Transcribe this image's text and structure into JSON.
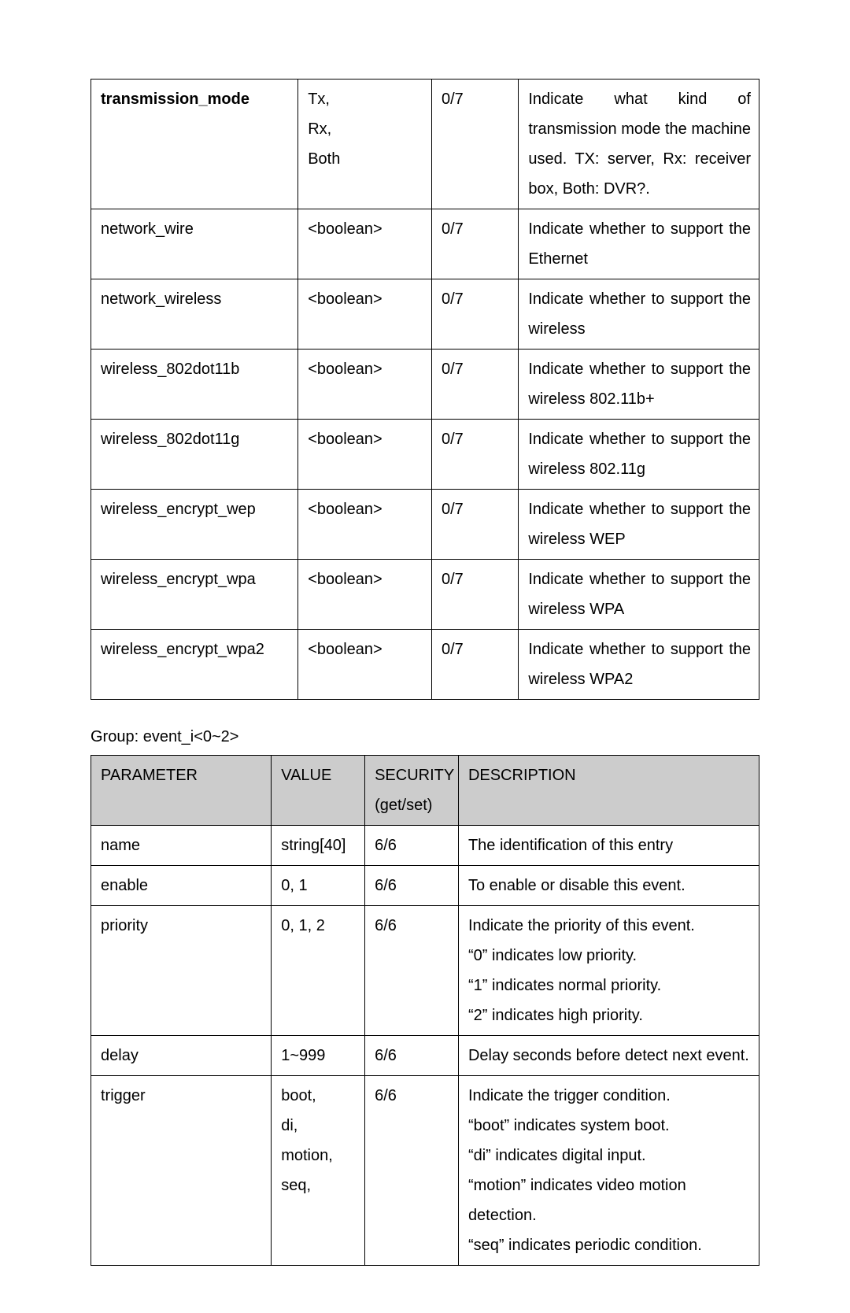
{
  "table1": {
    "rows": [
      {
        "param": "transmission_mode",
        "param_bold": true,
        "value_lines": [
          "Tx,",
          "Rx,",
          "Both"
        ],
        "sec": "0/7",
        "desc_lines": [
          "Indicate what kind of transmission mode the machine used. TX: server, Rx: receiver box, Both: DVR?."
        ],
        "desc_justify": true
      },
      {
        "param": "network_wire",
        "value_lines": [
          "<boolean>"
        ],
        "sec": "0/7",
        "desc_lines": [
          "Indicate whether to support the Ethernet"
        ],
        "desc_justify": true
      },
      {
        "param": "network_wireless",
        "value_lines": [
          "<boolean>"
        ],
        "sec": "0/7",
        "desc_lines": [
          "Indicate whether to support the wireless"
        ],
        "desc_justify": true
      },
      {
        "param": "wireless_802dot11b",
        "value_lines": [
          "<boolean>"
        ],
        "sec": "0/7",
        "desc_lines": [
          "Indicate whether to support the wireless 802.11b+"
        ],
        "desc_justify": true
      },
      {
        "param": "wireless_802dot11g",
        "value_lines": [
          "<boolean>"
        ],
        "sec": "0/7",
        "desc_lines": [
          "Indicate whether to support the wireless 802.11g"
        ],
        "desc_justify": true
      },
      {
        "param": "wireless_encrypt_wep",
        "value_lines": [
          "<boolean>"
        ],
        "sec": "0/7",
        "desc_lines": [
          "Indicate whether to support the wireless WEP"
        ],
        "desc_justify": true
      },
      {
        "param": "wireless_encrypt_wpa",
        "value_lines": [
          "<boolean>"
        ],
        "sec": "0/7",
        "desc_lines": [
          "Indicate whether to support the wireless WPA"
        ],
        "desc_justify": true
      },
      {
        "param": "wireless_encrypt_wpa2",
        "value_lines": [
          "<boolean>"
        ],
        "sec": "0/7",
        "desc_lines": [
          "Indicate whether to support the wireless WPA2"
        ],
        "desc_justify": true
      }
    ]
  },
  "group_label": "Group: event_i<0~2>",
  "table2": {
    "headers": {
      "param": "PARAMETER",
      "value": "VALUE",
      "sec_l1": "SECURITY",
      "sec_l2": "(get/set)",
      "desc": "DESCRIPTION"
    },
    "rows": [
      {
        "param": "name",
        "value_lines": [
          "string[40]"
        ],
        "sec": "6/6",
        "desc_lines": [
          "The identification of this entry"
        ]
      },
      {
        "param": "enable",
        "value_lines": [
          "0, 1"
        ],
        "sec": "6/6",
        "desc_lines": [
          "To enable or disable this event."
        ]
      },
      {
        "param": "priority",
        "value_lines": [
          "0, 1, 2"
        ],
        "sec": "6/6",
        "desc_lines": [
          "Indicate the priority of this event.",
          "“0” indicates low priority.",
          "“1” indicates normal priority.",
          "“2” indicates high priority."
        ]
      },
      {
        "param": "delay",
        "value_lines": [
          "1~999"
        ],
        "sec": "6/6",
        "desc_lines": [
          "Delay seconds before detect next event."
        ]
      },
      {
        "param": "trigger",
        "value_lines": [
          "boot,",
          "di,",
          "motion,",
          "seq,"
        ],
        "sec": "6/6",
        "desc_lines": [
          "Indicate the trigger condition.",
          "“boot” indicates system boot.",
          "“di” indicates digital input.",
          "“motion” indicates video motion detection.",
          "“seq” indicates periodic condition."
        ]
      }
    ]
  },
  "colors": {
    "header_bg": "#cccccc",
    "border": "#000000",
    "text": "#000000",
    "page_bg": "#ffffff"
  }
}
